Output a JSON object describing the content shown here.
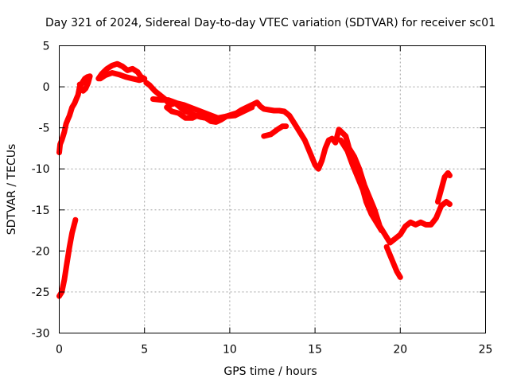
{
  "chart_data": {
    "type": "scatter",
    "title": "Day 321 of 2024, Sidereal Day-to-day VTEC variation (SDTVAR) for receiver sc01",
    "xlabel": "GPS time / hours",
    "ylabel": "SDTVAR / TECUs",
    "xlim": [
      0,
      25
    ],
    "ylim": [
      -30,
      5
    ],
    "xticks": [
      0,
      5,
      10,
      15,
      20,
      25
    ],
    "yticks": [
      -30,
      -25,
      -20,
      -15,
      -10,
      -5,
      0,
      5
    ],
    "grid": true,
    "marker": "+",
    "color": "#ff0000",
    "series": [
      {
        "name": "sc01",
        "segments": [
          [
            [
              0.0,
              -25.5
            ],
            [
              0.15,
              -25.0
            ],
            [
              0.3,
              -23.5
            ],
            [
              0.45,
              -21.5
            ],
            [
              0.6,
              -19.5
            ],
            [
              0.75,
              -17.8
            ],
            [
              0.95,
              -16.2
            ]
          ],
          [
            [
              0.0,
              -8.0
            ],
            [
              0.05,
              -7.0
            ],
            [
              0.15,
              -6.5
            ],
            [
              0.3,
              -5.5
            ],
            [
              0.4,
              -4.5
            ],
            [
              0.5,
              -4.0
            ],
            [
              0.6,
              -3.5
            ],
            [
              0.75,
              -2.5
            ],
            [
              0.9,
              -2.0
            ],
            [
              1.0,
              -1.5
            ],
            [
              1.1,
              -1.0
            ],
            [
              1.2,
              0.0
            ],
            [
              1.35,
              0.5
            ],
            [
              1.5,
              1.0
            ],
            [
              1.65,
              1.2
            ],
            [
              1.8,
              1.3
            ],
            [
              1.7,
              0.5
            ],
            [
              1.55,
              -0.2
            ],
            [
              1.4,
              -0.5
            ],
            [
              1.3,
              -0.3
            ],
            [
              1.2,
              0.3
            ]
          ],
          [
            [
              2.3,
              1.0
            ],
            [
              2.5,
              1.6
            ],
            [
              2.8,
              2.2
            ],
            [
              3.1,
              2.6
            ],
            [
              3.4,
              2.8
            ],
            [
              3.7,
              2.5
            ],
            [
              4.0,
              2.0
            ],
            [
              4.3,
              2.2
            ],
            [
              4.6,
              1.8
            ],
            [
              4.8,
              1.2
            ],
            [
              5.0,
              1.0
            ],
            [
              4.7,
              0.8
            ],
            [
              4.3,
              1.0
            ],
            [
              3.9,
              1.2
            ],
            [
              3.5,
              1.5
            ],
            [
              3.1,
              1.7
            ],
            [
              2.7,
              1.4
            ],
            [
              2.4,
              1.0
            ]
          ],
          [
            [
              5.1,
              0.5
            ],
            [
              5.3,
              0.2
            ],
            [
              5.6,
              -0.5
            ],
            [
              5.9,
              -1.0
            ],
            [
              6.2,
              -1.5
            ],
            [
              6.5,
              -2.2
            ],
            [
              6.8,
              -2.0
            ],
            [
              7.1,
              -2.5
            ],
            [
              7.4,
              -3.0
            ],
            [
              7.7,
              -3.2
            ],
            [
              8.0,
              -3.5
            ],
            [
              8.3,
              -3.7
            ],
            [
              8.6,
              -3.8
            ],
            [
              8.9,
              -4.2
            ],
            [
              9.2,
              -4.3
            ],
            [
              9.5,
              -4.0
            ],
            [
              9.8,
              -3.6
            ],
            [
              10.1,
              -3.4
            ],
            [
              10.4,
              -3.2
            ],
            [
              10.7,
              -2.8
            ],
            [
              11.0,
              -2.5
            ],
            [
              11.3,
              -2.2
            ],
            [
              11.6,
              -1.9
            ],
            [
              11.8,
              -2.4
            ],
            [
              12.0,
              -2.7
            ],
            [
              12.3,
              -2.8
            ],
            [
              12.6,
              -2.9
            ],
            [
              12.9,
              -2.9
            ],
            [
              13.2,
              -3.0
            ],
            [
              13.5,
              -3.5
            ],
            [
              13.8,
              -4.5
            ],
            [
              14.1,
              -5.5
            ],
            [
              14.4,
              -6.5
            ],
            [
              14.7,
              -8.0
            ],
            [
              15.0,
              -9.5
            ],
            [
              15.2,
              -10.0
            ],
            [
              15.4,
              -9.0
            ],
            [
              15.6,
              -7.5
            ],
            [
              15.8,
              -6.5
            ],
            [
              16.0,
              -6.3
            ],
            [
              16.2,
              -6.8
            ],
            [
              16.4,
              -5.2
            ],
            [
              16.6,
              -5.6
            ],
            [
              16.8,
              -6.0
            ],
            [
              17.0,
              -7.5
            ],
            [
              17.3,
              -8.5
            ],
            [
              17.6,
              -10.0
            ],
            [
              17.9,
              -12.0
            ],
            [
              18.2,
              -13.5
            ],
            [
              18.5,
              -15.0
            ],
            [
              18.8,
              -17.0
            ],
            [
              19.1,
              -18.0
            ],
            [
              19.4,
              -19.0
            ],
            [
              19.7,
              -18.5
            ],
            [
              20.0,
              -18.0
            ],
            [
              20.3,
              -17.0
            ],
            [
              20.6,
              -16.5
            ],
            [
              20.9,
              -16.8
            ],
            [
              21.2,
              -16.5
            ],
            [
              21.5,
              -16.8
            ],
            [
              21.8,
              -16.8
            ],
            [
              22.1,
              -16.0
            ],
            [
              22.4,
              -14.5
            ],
            [
              22.7,
              -14.0
            ],
            [
              22.9,
              -14.3
            ]
          ],
          [
            [
              5.5,
              -1.5
            ],
            [
              6.0,
              -1.6
            ],
            [
              6.4,
              -1.6
            ],
            [
              6.9,
              -2.0
            ],
            [
              7.3,
              -2.2
            ],
            [
              7.8,
              -2.6
            ],
            [
              8.3,
              -3.0
            ],
            [
              8.8,
              -3.4
            ],
            [
              9.3,
              -3.8
            ],
            [
              9.8,
              -3.6
            ],
            [
              10.3,
              -3.5
            ],
            [
              10.8,
              -3.0
            ],
            [
              11.3,
              -2.5
            ]
          ],
          [
            [
              6.3,
              -2.5
            ],
            [
              6.6,
              -3.0
            ],
            [
              7.0,
              -3.2
            ],
            [
              7.4,
              -3.8
            ],
            [
              7.8,
              -3.8
            ],
            [
              8.2,
              -3.4
            ]
          ],
          [
            [
              12.0,
              -6.0
            ],
            [
              12.4,
              -5.8
            ],
            [
              12.8,
              -5.2
            ],
            [
              13.1,
              -4.8
            ],
            [
              13.3,
              -4.8
            ]
          ],
          [
            [
              16.5,
              -6.5
            ],
            [
              16.9,
              -7.8
            ],
            [
              17.2,
              -9.5
            ],
            [
              17.5,
              -11.0
            ],
            [
              17.8,
              -12.5
            ],
            [
              18.0,
              -14.0
            ],
            [
              18.3,
              -15.5
            ],
            [
              18.6,
              -16.5
            ],
            [
              18.9,
              -17.5
            ]
          ],
          [
            [
              19.2,
              -19.5
            ],
            [
              19.4,
              -20.5
            ],
            [
              19.6,
              -21.5
            ],
            [
              19.8,
              -22.5
            ],
            [
              20.0,
              -23.2
            ]
          ],
          [
            [
              22.2,
              -14.0
            ],
            [
              22.4,
              -12.5
            ],
            [
              22.6,
              -11.0
            ],
            [
              22.8,
              -10.5
            ],
            [
              22.9,
              -10.8
            ]
          ]
        ]
      }
    ]
  }
}
